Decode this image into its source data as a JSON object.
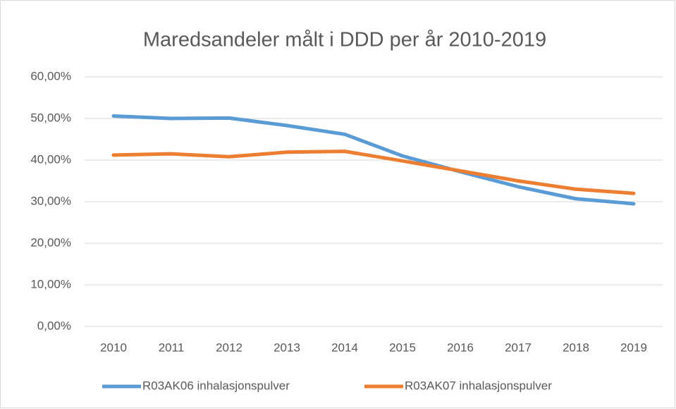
{
  "chart_data": {
    "type": "line",
    "title": "Maredsandeler målt i DDD per år 2010-2019",
    "categories": [
      "2010",
      "2011",
      "2012",
      "2013",
      "2014",
      "2015",
      "2016",
      "2017",
      "2018",
      "2019"
    ],
    "series": [
      {
        "name": "R03AK06 inhalasjonspulver",
        "color": "#5b9bd5",
        "values": [
          50.6,
          50.0,
          50.1,
          48.3,
          46.2,
          41.0,
          37.2,
          33.6,
          30.7,
          29.5
        ]
      },
      {
        "name": "R03AK07 inhalasjonspulver",
        "color": "#ed7d31",
        "values": [
          41.2,
          41.5,
          40.8,
          41.9,
          42.1,
          39.8,
          37.4,
          35.0,
          33.0,
          32.0
        ]
      }
    ],
    "ylim": [
      0,
      60
    ],
    "yticks": [
      {
        "value": 0,
        "label": "0,00%"
      },
      {
        "value": 10,
        "label": "10,00%"
      },
      {
        "value": 20,
        "label": "20,00%"
      },
      {
        "value": 30,
        "label": "30,00%"
      },
      {
        "value": 40,
        "label": "40,00%"
      },
      {
        "value": 50,
        "label": "50,00%"
      },
      {
        "value": 60,
        "label": "60,00%"
      }
    ],
    "grid": true,
    "legend": "bottom"
  }
}
